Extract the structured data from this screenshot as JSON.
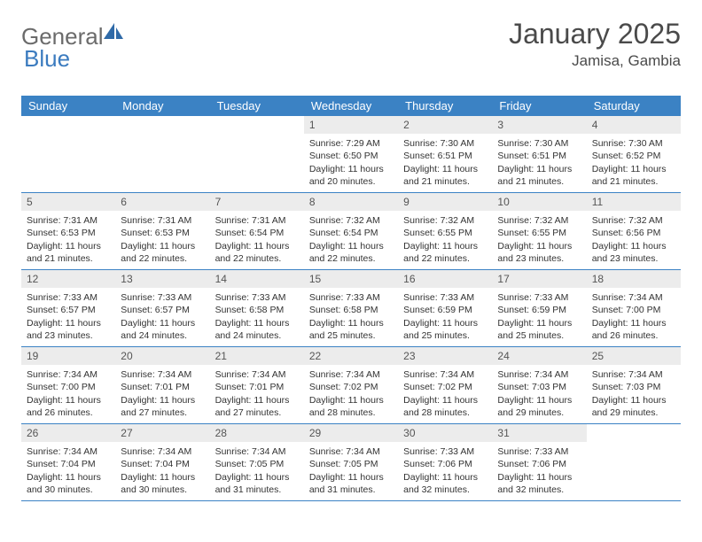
{
  "brand": {
    "part1": "General",
    "part2": "Blue"
  },
  "title": "January 2025",
  "location": "Jamisa, Gambia",
  "colors": {
    "header_bg": "#3b82c4",
    "header_text": "#ffffff",
    "daynum_bg": "#ececec",
    "border": "#3b82c4",
    "brand_gray": "#6b6b6b",
    "brand_blue": "#3b7bbf"
  },
  "day_names": [
    "Sunday",
    "Monday",
    "Tuesday",
    "Wednesday",
    "Thursday",
    "Friday",
    "Saturday"
  ],
  "weeks": [
    [
      {
        "n": "",
        "lines": []
      },
      {
        "n": "",
        "lines": []
      },
      {
        "n": "",
        "lines": []
      },
      {
        "n": "1",
        "lines": [
          "Sunrise: 7:29 AM",
          "Sunset: 6:50 PM",
          "Daylight: 11 hours and 20 minutes."
        ]
      },
      {
        "n": "2",
        "lines": [
          "Sunrise: 7:30 AM",
          "Sunset: 6:51 PM",
          "Daylight: 11 hours and 21 minutes."
        ]
      },
      {
        "n": "3",
        "lines": [
          "Sunrise: 7:30 AM",
          "Sunset: 6:51 PM",
          "Daylight: 11 hours and 21 minutes."
        ]
      },
      {
        "n": "4",
        "lines": [
          "Sunrise: 7:30 AM",
          "Sunset: 6:52 PM",
          "Daylight: 11 hours and 21 minutes."
        ]
      }
    ],
    [
      {
        "n": "5",
        "lines": [
          "Sunrise: 7:31 AM",
          "Sunset: 6:53 PM",
          "Daylight: 11 hours and 21 minutes."
        ]
      },
      {
        "n": "6",
        "lines": [
          "Sunrise: 7:31 AM",
          "Sunset: 6:53 PM",
          "Daylight: 11 hours and 22 minutes."
        ]
      },
      {
        "n": "7",
        "lines": [
          "Sunrise: 7:31 AM",
          "Sunset: 6:54 PM",
          "Daylight: 11 hours and 22 minutes."
        ]
      },
      {
        "n": "8",
        "lines": [
          "Sunrise: 7:32 AM",
          "Sunset: 6:54 PM",
          "Daylight: 11 hours and 22 minutes."
        ]
      },
      {
        "n": "9",
        "lines": [
          "Sunrise: 7:32 AM",
          "Sunset: 6:55 PM",
          "Daylight: 11 hours and 22 minutes."
        ]
      },
      {
        "n": "10",
        "lines": [
          "Sunrise: 7:32 AM",
          "Sunset: 6:55 PM",
          "Daylight: 11 hours and 23 minutes."
        ]
      },
      {
        "n": "11",
        "lines": [
          "Sunrise: 7:32 AM",
          "Sunset: 6:56 PM",
          "Daylight: 11 hours and 23 minutes."
        ]
      }
    ],
    [
      {
        "n": "12",
        "lines": [
          "Sunrise: 7:33 AM",
          "Sunset: 6:57 PM",
          "Daylight: 11 hours and 23 minutes."
        ]
      },
      {
        "n": "13",
        "lines": [
          "Sunrise: 7:33 AM",
          "Sunset: 6:57 PM",
          "Daylight: 11 hours and 24 minutes."
        ]
      },
      {
        "n": "14",
        "lines": [
          "Sunrise: 7:33 AM",
          "Sunset: 6:58 PM",
          "Daylight: 11 hours and 24 minutes."
        ]
      },
      {
        "n": "15",
        "lines": [
          "Sunrise: 7:33 AM",
          "Sunset: 6:58 PM",
          "Daylight: 11 hours and 25 minutes."
        ]
      },
      {
        "n": "16",
        "lines": [
          "Sunrise: 7:33 AM",
          "Sunset: 6:59 PM",
          "Daylight: 11 hours and 25 minutes."
        ]
      },
      {
        "n": "17",
        "lines": [
          "Sunrise: 7:33 AM",
          "Sunset: 6:59 PM",
          "Daylight: 11 hours and 25 minutes."
        ]
      },
      {
        "n": "18",
        "lines": [
          "Sunrise: 7:34 AM",
          "Sunset: 7:00 PM",
          "Daylight: 11 hours and 26 minutes."
        ]
      }
    ],
    [
      {
        "n": "19",
        "lines": [
          "Sunrise: 7:34 AM",
          "Sunset: 7:00 PM",
          "Daylight: 11 hours and 26 minutes."
        ]
      },
      {
        "n": "20",
        "lines": [
          "Sunrise: 7:34 AM",
          "Sunset: 7:01 PM",
          "Daylight: 11 hours and 27 minutes."
        ]
      },
      {
        "n": "21",
        "lines": [
          "Sunrise: 7:34 AM",
          "Sunset: 7:01 PM",
          "Daylight: 11 hours and 27 minutes."
        ]
      },
      {
        "n": "22",
        "lines": [
          "Sunrise: 7:34 AM",
          "Sunset: 7:02 PM",
          "Daylight: 11 hours and 28 minutes."
        ]
      },
      {
        "n": "23",
        "lines": [
          "Sunrise: 7:34 AM",
          "Sunset: 7:02 PM",
          "Daylight: 11 hours and 28 minutes."
        ]
      },
      {
        "n": "24",
        "lines": [
          "Sunrise: 7:34 AM",
          "Sunset: 7:03 PM",
          "Daylight: 11 hours and 29 minutes."
        ]
      },
      {
        "n": "25",
        "lines": [
          "Sunrise: 7:34 AM",
          "Sunset: 7:03 PM",
          "Daylight: 11 hours and 29 minutes."
        ]
      }
    ],
    [
      {
        "n": "26",
        "lines": [
          "Sunrise: 7:34 AM",
          "Sunset: 7:04 PM",
          "Daylight: 11 hours and 30 minutes."
        ]
      },
      {
        "n": "27",
        "lines": [
          "Sunrise: 7:34 AM",
          "Sunset: 7:04 PM",
          "Daylight: 11 hours and 30 minutes."
        ]
      },
      {
        "n": "28",
        "lines": [
          "Sunrise: 7:34 AM",
          "Sunset: 7:05 PM",
          "Daylight: 11 hours and 31 minutes."
        ]
      },
      {
        "n": "29",
        "lines": [
          "Sunrise: 7:34 AM",
          "Sunset: 7:05 PM",
          "Daylight: 11 hours and 31 minutes."
        ]
      },
      {
        "n": "30",
        "lines": [
          "Sunrise: 7:33 AM",
          "Sunset: 7:06 PM",
          "Daylight: 11 hours and 32 minutes."
        ]
      },
      {
        "n": "31",
        "lines": [
          "Sunrise: 7:33 AM",
          "Sunset: 7:06 PM",
          "Daylight: 11 hours and 32 minutes."
        ]
      },
      {
        "n": "",
        "lines": []
      }
    ]
  ]
}
